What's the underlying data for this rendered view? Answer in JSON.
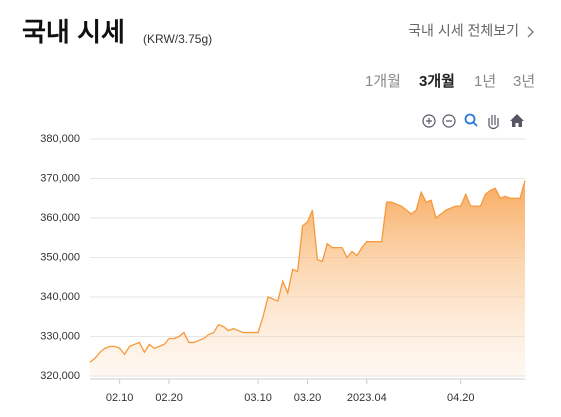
{
  "header": {
    "title": "국내 시세",
    "unit": "(KRW/3.75g)",
    "link": "국내 시세 전체보기"
  },
  "tabs": {
    "items": [
      "1개월",
      "3개월",
      "1년",
      "3년"
    ],
    "active": 1
  },
  "chart_data": {
    "type": "area",
    "color": "#f59a3c",
    "categories": [
      "",
      null,
      null,
      null,
      null,
      null,
      "02.10",
      null,
      null,
      null,
      null,
      null,
      null,
      null,
      null,
      null,
      "02.20",
      null,
      null,
      null,
      null,
      null,
      null,
      null,
      null,
      null,
      null,
      null,
      null,
      null,
      null,
      null,
      null,
      null,
      "03.10",
      null,
      null,
      null,
      null,
      null,
      null,
      null,
      null,
      null,
      "03.20",
      null,
      null,
      null,
      null,
      null,
      null,
      null,
      null,
      null,
      null,
      null,
      "2023.04",
      null,
      null,
      null,
      null,
      null,
      null,
      null,
      null,
      null,
      null,
      null,
      null,
      null,
      null,
      null,
      null,
      null,
      null,
      "04.20",
      null,
      null,
      null,
      null,
      null,
      null,
      null,
      null,
      null,
      null,
      null,
      null,
      null
    ],
    "values": [
      323500,
      324500,
      326000,
      327000,
      327500,
      327500,
      327000,
      325500,
      327500,
      328000,
      328500,
      326000,
      328000,
      327000,
      327500,
      328000,
      329500,
      329500,
      330000,
      331000,
      328500,
      328500,
      329000,
      329500,
      330500,
      331000,
      333000,
      332500,
      331500,
      332000,
      331500,
      331000,
      331000,
      331000,
      331000,
      335000,
      340000,
      339500,
      339000,
      344000,
      341000,
      347000,
      346500,
      358000,
      359000,
      362000,
      349500,
      349000,
      353500,
      352500,
      352500,
      352500,
      350000,
      351500,
      350500,
      352500,
      354000,
      354000,
      354000,
      354000,
      364000,
      364000,
      363500,
      363000,
      362000,
      361000,
      362000,
      366500,
      364000,
      364500,
      360000,
      361000,
      362000,
      362500,
      363000,
      363000,
      366000,
      363000,
      363000,
      363000,
      366000,
      367000,
      367500,
      365000,
      365500,
      365000,
      365000,
      365000,
      369500
    ],
    "ylim": [
      320000,
      380000
    ],
    "yticks": [
      {
        "value": 320000,
        "label": "320,000"
      },
      {
        "value": 330000,
        "label": "330,000"
      },
      {
        "value": 340000,
        "label": "340,000"
      },
      {
        "value": 350000,
        "label": "350,000"
      },
      {
        "value": 360000,
        "label": "360,000"
      },
      {
        "value": 370000,
        "label": "370,000"
      },
      {
        "value": 380000,
        "label": "380,000"
      }
    ],
    "grid": true
  }
}
